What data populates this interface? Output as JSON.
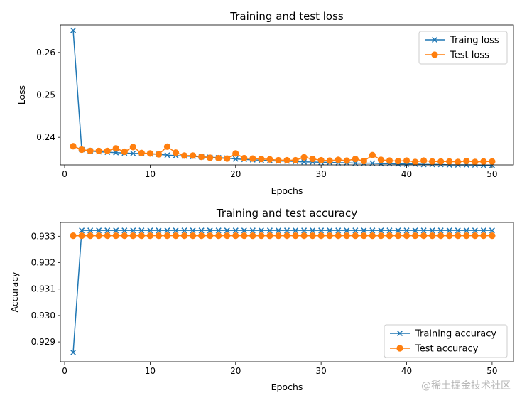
{
  "colors": {
    "train": "#1f77b4",
    "test": "#ff7f0e"
  },
  "watermark": "@稀土掘金技术社区",
  "chart_data": [
    {
      "type": "line",
      "title": "Training and test loss",
      "xlabel": "Epochs",
      "ylabel": "Loss",
      "xlim": [
        -0.5,
        52.5
      ],
      "ylim": [
        0.2335,
        0.2665
      ],
      "xticks": [
        0,
        10,
        20,
        30,
        40,
        50
      ],
      "yticks": [
        0.24,
        0.25,
        0.26
      ],
      "ytick_labels": [
        "0.24",
        "0.25",
        "0.26"
      ],
      "legend_position": "top-right",
      "x": [
        1,
        2,
        3,
        4,
        5,
        6,
        7,
        8,
        9,
        10,
        11,
        12,
        13,
        14,
        15,
        16,
        17,
        18,
        19,
        20,
        21,
        22,
        23,
        24,
        25,
        26,
        27,
        28,
        29,
        30,
        31,
        32,
        33,
        34,
        35,
        36,
        37,
        38,
        39,
        40,
        41,
        42,
        43,
        44,
        45,
        46,
        47,
        48,
        49,
        50
      ],
      "series": [
        {
          "name": "Traing loss",
          "color": "#1f77b4",
          "marker": "x",
          "values": [
            0.2652,
            0.2371,
            0.2368,
            0.2366,
            0.2365,
            0.2364,
            0.2363,
            0.2362,
            0.2362,
            0.2361,
            0.236,
            0.2358,
            0.2357,
            0.2356,
            0.2355,
            0.2354,
            0.2353,
            0.2352,
            0.2351,
            0.2349,
            0.2348,
            0.2347,
            0.2346,
            0.2345,
            0.2344,
            0.2344,
            0.2343,
            0.2342,
            0.2342,
            0.2341,
            0.2341,
            0.234,
            0.234,
            0.2339,
            0.2339,
            0.2339,
            0.2338,
            0.2338,
            0.2337,
            0.2337,
            0.2337,
            0.2336,
            0.2336,
            0.2336,
            0.2335,
            0.2335,
            0.2335,
            0.2335,
            0.2334,
            0.2334
          ]
        },
        {
          "name": "Test loss",
          "color": "#ff7f0e",
          "marker": "o",
          "values": [
            0.2379,
            0.2371,
            0.2368,
            0.2368,
            0.2368,
            0.2374,
            0.2366,
            0.2377,
            0.2363,
            0.2362,
            0.236,
            0.2378,
            0.2364,
            0.2357,
            0.2357,
            0.2354,
            0.2352,
            0.2351,
            0.235,
            0.2362,
            0.2351,
            0.235,
            0.2349,
            0.2348,
            0.2346,
            0.2346,
            0.2346,
            0.2353,
            0.2349,
            0.2346,
            0.2345,
            0.2347,
            0.2345,
            0.2349,
            0.2344,
            0.2358,
            0.2347,
            0.2345,
            0.2344,
            0.2345,
            0.2342,
            0.2345,
            0.2343,
            0.2343,
            0.2343,
            0.2342,
            0.2344,
            0.2342,
            0.2343,
            0.2343
          ]
        }
      ]
    },
    {
      "type": "line",
      "title": "Training and test accuracy",
      "xlabel": "Epochs",
      "ylabel": "Accuracy",
      "xlim": [
        -0.5,
        52.5
      ],
      "ylim": [
        0.92825,
        0.93352
      ],
      "xticks": [
        0,
        10,
        20,
        30,
        40,
        50
      ],
      "yticks": [
        0.929,
        0.93,
        0.931,
        0.932,
        0.933
      ],
      "ytick_labels": [
        "0.929",
        "0.930",
        "0.931",
        "0.932",
        "0.933"
      ],
      "legend_position": "bottom-right",
      "x": [
        1,
        2,
        3,
        4,
        5,
        6,
        7,
        8,
        9,
        10,
        11,
        12,
        13,
        14,
        15,
        16,
        17,
        18,
        19,
        20,
        21,
        22,
        23,
        24,
        25,
        26,
        27,
        28,
        29,
        30,
        31,
        32,
        33,
        34,
        35,
        36,
        37,
        38,
        39,
        40,
        41,
        42,
        43,
        44,
        45,
        46,
        47,
        48,
        49,
        50
      ],
      "series": [
        {
          "name": "Training accuracy",
          "color": "#1f77b4",
          "marker": "x",
          "values": [
            0.9286,
            0.93322,
            0.93322,
            0.93322,
            0.93322,
            0.93322,
            0.93322,
            0.93322,
            0.93322,
            0.93322,
            0.93322,
            0.93322,
            0.93322,
            0.93322,
            0.93322,
            0.93322,
            0.93322,
            0.93322,
            0.93322,
            0.93322,
            0.93322,
            0.93322,
            0.93322,
            0.93322,
            0.93322,
            0.93322,
            0.93322,
            0.93322,
            0.93322,
            0.93322,
            0.93322,
            0.93322,
            0.93322,
            0.93322,
            0.93322,
            0.93322,
            0.93322,
            0.93322,
            0.93322,
            0.93322,
            0.93322,
            0.93322,
            0.93322,
            0.93322,
            0.93322,
            0.93322,
            0.93322,
            0.93322,
            0.93322,
            0.93322
          ]
        },
        {
          "name": "Test accuracy",
          "color": "#ff7f0e",
          "marker": "o",
          "values": [
            0.93302,
            0.93302,
            0.93302,
            0.93302,
            0.93302,
            0.93302,
            0.93302,
            0.93302,
            0.93302,
            0.93302,
            0.93302,
            0.93302,
            0.93302,
            0.93302,
            0.93302,
            0.93302,
            0.93302,
            0.93302,
            0.93302,
            0.93302,
            0.93302,
            0.93302,
            0.93302,
            0.93302,
            0.93302,
            0.93302,
            0.93302,
            0.93302,
            0.93302,
            0.93302,
            0.93302,
            0.93302,
            0.93302,
            0.93302,
            0.93302,
            0.93302,
            0.93302,
            0.93302,
            0.93302,
            0.93302,
            0.93302,
            0.93302,
            0.93302,
            0.93302,
            0.93302,
            0.93302,
            0.93302,
            0.93302,
            0.93302,
            0.93302
          ]
        }
      ]
    }
  ]
}
